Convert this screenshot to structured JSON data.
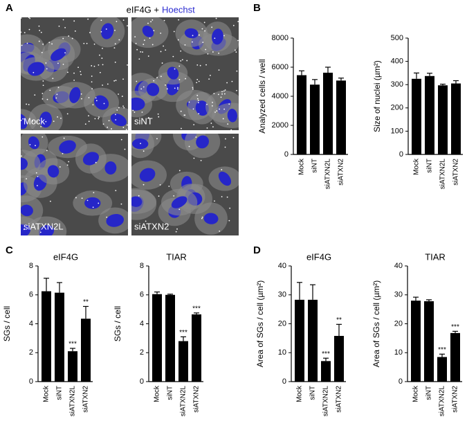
{
  "figure": {
    "panel_labels": [
      "A",
      "B",
      "C",
      "D"
    ],
    "image_title": "eIF4G +",
    "image_title_stain": "Hoechst",
    "image_labels": [
      "Mock",
      "siNT",
      "siATXN2L",
      "siATXN2"
    ]
  },
  "chart_data": [
    {
      "type": "bar",
      "y_label": "Analyzed cells / well",
      "categories": [
        "Mock",
        "siNT",
        "siATXN2L",
        "siATXN2"
      ],
      "values": [
        5450,
        4800,
        5620,
        5080
      ],
      "errors": [
        300,
        350,
        380,
        170
      ],
      "color": "#000000",
      "ylim": [
        0,
        8000
      ],
      "yticks": [
        0,
        2000,
        4000,
        6000,
        8000
      ]
    },
    {
      "type": "bar",
      "y_label": "Size of nuclei (µm²)",
      "categories": [
        "Mock",
        "siNT",
        "siATXN2L",
        "siATXN2"
      ],
      "values": [
        325,
        337,
        297,
        305
      ],
      "errors": [
        25,
        12,
        5,
        12
      ],
      "color": "#000000",
      "ylim": [
        0,
        500
      ],
      "yticks": [
        0,
        100,
        200,
        300,
        400,
        500
      ]
    },
    {
      "type": "bar",
      "title": "eIF4G",
      "y_label": "SGs / cell",
      "categories": [
        "Mock",
        "siNT",
        "siATXN2L",
        "siATXN2"
      ],
      "values": [
        6.25,
        6.15,
        2.1,
        4.35
      ],
      "errors": [
        0.9,
        0.7,
        0.2,
        0.85
      ],
      "annotations": [
        null,
        null,
        "***",
        "**"
      ],
      "color": "#000000",
      "ylim": [
        0,
        8
      ],
      "yticks": [
        0,
        2,
        4,
        6,
        8
      ]
    },
    {
      "type": "bar",
      "title": "TIAR",
      "y_label": "SGs / cell",
      "categories": [
        "Mock",
        "siNT",
        "siATXN2L",
        "siATXN2"
      ],
      "values": [
        6.05,
        6.0,
        2.8,
        4.65
      ],
      "errors": [
        0.15,
        0.05,
        0.3,
        0.1
      ],
      "annotations": [
        null,
        null,
        "***",
        "***"
      ],
      "color": "#000000",
      "ylim": [
        0,
        8
      ],
      "yticks": [
        0,
        2,
        4,
        6,
        8
      ]
    },
    {
      "type": "bar",
      "title": "eIF4G",
      "y_label": "Area of SGs / cell (µm²)",
      "categories": [
        "Mock",
        "siNT",
        "siATXN2L",
        "siATXN2"
      ],
      "values": [
        28.3,
        28.3,
        7.1,
        15.8
      ],
      "errors": [
        6,
        5.2,
        1,
        4
      ],
      "annotations": [
        null,
        null,
        "***",
        "**"
      ],
      "color": "#000000",
      "ylim": [
        0,
        40
      ],
      "yticks": [
        0,
        10,
        20,
        30,
        40
      ]
    },
    {
      "type": "bar",
      "title": "TIAR",
      "y_label": "Area of SGs / cell (µm²)",
      "categories": [
        "Mock",
        "siNT",
        "siATXN2L",
        "siATXN2"
      ],
      "values": [
        28,
        27.8,
        8.5,
        16.8
      ],
      "errors": [
        1.2,
        0.5,
        1,
        0.6
      ],
      "annotations": [
        null,
        null,
        "***",
        "***"
      ],
      "color": "#000000",
      "ylim": [
        0,
        40
      ],
      "yticks": [
        0,
        10,
        20,
        30,
        40
      ]
    }
  ]
}
